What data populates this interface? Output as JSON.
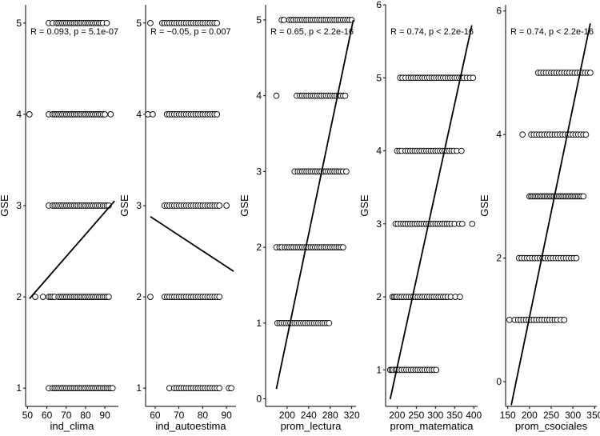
{
  "chart_data": [
    {
      "type": "scatter",
      "xlabel": "ind_clima",
      "ylabel": "GSE",
      "xlim": [
        49,
        97
      ],
      "ylim": [
        0.8,
        5.2
      ],
      "xticks": [
        50,
        60,
        70,
        80,
        90
      ],
      "yticks": [
        1,
        2,
        3,
        4,
        5
      ],
      "annotation": "R = 0.093, p = 5.1e-07",
      "regression": {
        "x": [
          51,
          95
        ],
        "y": [
          1.98,
          3.05
        ]
      },
      "x_values": {
        "1": [
          61,
          63,
          64,
          65,
          66,
          67,
          68,
          69,
          70,
          71,
          72,
          73,
          74,
          75,
          76,
          77,
          78,
          79,
          80,
          81,
          82,
          83,
          84,
          85,
          86,
          87,
          88,
          89,
          90,
          91,
          92,
          93,
          94
        ],
        "2": [
          54,
          58,
          61,
          62,
          63,
          64,
          66,
          67,
          68,
          69,
          70,
          71,
          72,
          73,
          74,
          75,
          76,
          77,
          78,
          79,
          80,
          81,
          82,
          83,
          84,
          85,
          86,
          87,
          88,
          89,
          90,
          91,
          92
        ],
        "3": [
          61,
          63,
          64,
          65,
          66,
          67,
          68,
          69,
          70,
          71,
          72,
          73,
          74,
          75,
          76,
          77,
          78,
          79,
          80,
          81,
          82,
          83,
          84,
          85,
          86,
          87,
          88,
          89,
          90,
          91,
          92
        ],
        "4": [
          51,
          61,
          63,
          64,
          65,
          66,
          67,
          68,
          69,
          70,
          71,
          72,
          73,
          74,
          75,
          76,
          77,
          78,
          79,
          80,
          81,
          82,
          83,
          84,
          85,
          86,
          87,
          88,
          89,
          90,
          93
        ],
        "5": [
          61,
          63,
          65,
          66,
          67,
          68,
          69,
          70,
          71,
          72,
          73,
          74,
          75,
          76,
          77,
          78,
          79,
          80,
          81,
          82,
          83,
          84,
          85,
          86,
          87,
          88,
          89,
          91
        ]
      }
    },
    {
      "type": "scatter",
      "xlabel": "ind_autoestima",
      "ylabel": "GSE",
      "xlim": [
        56,
        94
      ],
      "ylim": [
        0.8,
        5.2
      ],
      "xticks": [
        60,
        70,
        80,
        90
      ],
      "yticks": [
        1,
        2,
        3,
        4,
        5
      ],
      "annotation": "R = −0.05, p = 0.007",
      "regression": {
        "x": [
          58,
          93
        ],
        "y": [
          2.88,
          2.28
        ]
      },
      "x_values": {
        "1": [
          66,
          68,
          69,
          70,
          71,
          72,
          73,
          74,
          75,
          76,
          77,
          78,
          79,
          80,
          81,
          82,
          83,
          84,
          85,
          86,
          87,
          91,
          92
        ],
        "2": [
          58,
          64,
          65,
          66,
          67,
          68,
          69,
          70,
          71,
          72,
          73,
          74,
          75,
          76,
          77,
          78,
          79,
          80,
          81,
          82,
          83,
          84,
          85,
          86,
          87
        ],
        "3": [
          64,
          65,
          66,
          67,
          68,
          69,
          70,
          71,
          72,
          73,
          74,
          75,
          76,
          77,
          78,
          79,
          80,
          81,
          82,
          83,
          84,
          85,
          86,
          87,
          90
        ],
        "4": [
          57,
          59,
          65,
          66,
          67,
          68,
          69,
          70,
          71,
          72,
          73,
          74,
          75,
          76,
          77,
          78,
          79,
          80,
          81,
          82,
          83,
          84,
          85,
          86
        ],
        "5": [
          58,
          63,
          64,
          65,
          66,
          67,
          68,
          69,
          70,
          71,
          72,
          73,
          74,
          75,
          76,
          77,
          78,
          79,
          80,
          81,
          82,
          83,
          84,
          85,
          86
        ]
      }
    },
    {
      "type": "scatter",
      "xlabel": "prom_lectura",
      "ylabel": "GSE",
      "xlim": [
        160,
        328
      ],
      "ylim": [
        -0.1,
        5.2
      ],
      "xticks": [
        200,
        240,
        280,
        320
      ],
      "yticks": [
        0,
        1,
        2,
        3,
        4,
        5
      ],
      "annotation": "R = 0.65, p < 2.2e-16",
      "regression": {
        "x": [
          180,
          323
        ],
        "y": [
          0.13,
          5.0
        ]
      },
      "x_values": {
        "1": [
          182,
          186,
          190,
          194,
          198,
          202,
          206,
          210,
          214,
          218,
          222,
          226,
          230,
          234,
          238,
          242,
          246,
          250,
          254,
          258,
          262,
          266,
          270,
          274,
          278
        ],
        "2": [
          180,
          186,
          190,
          196,
          200,
          204,
          208,
          212,
          216,
          220,
          224,
          228,
          232,
          236,
          240,
          244,
          248,
          252,
          256,
          260,
          264,
          268,
          272,
          276,
          280,
          284,
          288,
          292,
          296,
          300,
          304
        ],
        "3": [
          214,
          220,
          224,
          228,
          232,
          236,
          240,
          244,
          248,
          252,
          256,
          260,
          264,
          268,
          272,
          276,
          280,
          284,
          288,
          292,
          296,
          300,
          304,
          310
        ],
        "4": [
          180,
          218,
          224,
          228,
          232,
          236,
          240,
          244,
          248,
          252,
          256,
          260,
          264,
          268,
          272,
          276,
          280,
          284,
          288,
          292,
          296,
          300,
          304,
          308
        ],
        "5": [
          190,
          194,
          204,
          208,
          212,
          216,
          220,
          224,
          228,
          232,
          236,
          240,
          244,
          248,
          252,
          256,
          260,
          264,
          268,
          272,
          276,
          280,
          284,
          288,
          292,
          296,
          300,
          304,
          308,
          312,
          316,
          320
        ]
      }
    },
    {
      "type": "scatter",
      "xlabel": "prom_matematica",
      "ylabel": "GSE",
      "xlim": [
        170,
        410
      ],
      "ylim": [
        0.5,
        6.0
      ],
      "xticks": [
        200,
        250,
        300,
        350,
        400
      ],
      "yticks": [
        1,
        2,
        3,
        4,
        5,
        6
      ],
      "annotation": "R = 0.74, p < 2.2e-16",
      "regression": {
        "x": [
          182,
          395
        ],
        "y": [
          0.6,
          5.72
        ]
      },
      "x_values": {
        "1": [
          182,
          186,
          190,
          196,
          200,
          206,
          212,
          218,
          224,
          230,
          236,
          242,
          248,
          254,
          260,
          266,
          272,
          278,
          284,
          290,
          296,
          302
        ],
        "2": [
          188,
          192,
          196,
          200,
          206,
          212,
          218,
          224,
          230,
          236,
          242,
          248,
          254,
          260,
          266,
          272,
          278,
          284,
          290,
          296,
          302,
          308,
          314,
          320,
          326,
          332,
          340,
          352,
          364
        ],
        "3": [
          196,
          202,
          210,
          216,
          222,
          228,
          234,
          240,
          246,
          252,
          258,
          264,
          270,
          276,
          282,
          288,
          294,
          300,
          306,
          312,
          318,
          324,
          330,
          336,
          342,
          350,
          362,
          370,
          396
        ],
        "4": [
          200,
          206,
          212,
          222,
          228,
          234,
          240,
          246,
          252,
          258,
          264,
          270,
          276,
          282,
          288,
          294,
          300,
          306,
          312,
          318,
          324,
          330,
          336,
          342,
          348,
          356,
          368
        ],
        "5": [
          208,
          214,
          222,
          230,
          236,
          242,
          248,
          254,
          260,
          266,
          272,
          278,
          284,
          290,
          296,
          302,
          308,
          314,
          320,
          326,
          332,
          338,
          344,
          350,
          356,
          362,
          368,
          374,
          382,
          390,
          398
        ]
      }
    },
    {
      "type": "scatter",
      "xlabel": "prom_csociales",
      "ylabel": "GSE",
      "xlim": [
        145,
        355
      ],
      "ylim": [
        -0.4,
        6.1
      ],
      "xticks": [
        150,
        200,
        250,
        300,
        350
      ],
      "yticks": [
        0,
        2,
        4,
        6
      ],
      "annotation": "R = 0.74, p < 2.2e-16",
      "regression": {
        "x": [
          158,
          340
        ],
        "y": [
          -0.38,
          5.8
        ]
      },
      "x_values": {
        "1": [
          154,
          166,
          174,
          180,
          186,
          192,
          198,
          204,
          210,
          216,
          222,
          228,
          234,
          240,
          246,
          252,
          258,
          264,
          272,
          280
        ],
        "2": [
          176,
          182,
          188,
          194,
          200,
          206,
          212,
          218,
          224,
          230,
          236,
          242,
          248,
          254,
          260,
          266,
          272,
          278,
          284,
          290,
          296,
          302,
          308
        ],
        "3": [
          200,
          204,
          208,
          212,
          216,
          220,
          224,
          228,
          232,
          236,
          240,
          244,
          248,
          252,
          256,
          260,
          264,
          268,
          272,
          276,
          280,
          284,
          288,
          292,
          296,
          300,
          304,
          308,
          312,
          316,
          320,
          324
        ],
        "4": [
          184,
          204,
          210,
          216,
          222,
          228,
          234,
          240,
          246,
          252,
          258,
          264,
          270,
          276,
          282,
          288,
          294,
          300,
          306,
          312,
          318,
          324,
          330
        ],
        "5": [
          220,
          226,
          232,
          238,
          244,
          250,
          256,
          262,
          268,
          274,
          280,
          286,
          292,
          298,
          304,
          310,
          316,
          322,
          328,
          334,
          340
        ]
      }
    }
  ]
}
